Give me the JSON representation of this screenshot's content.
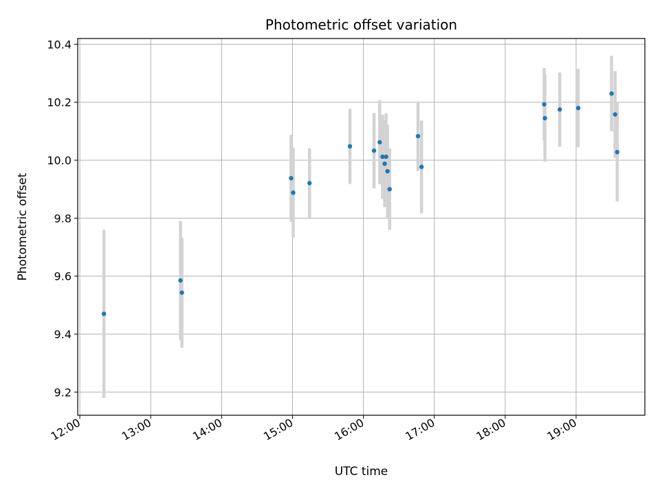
{
  "chart_data": {
    "type": "scatter",
    "title": "Photometric offset variation",
    "xlabel": "UTC time",
    "ylabel": "Photometric offset",
    "x_unit": "hours (UTC)",
    "xlim": [
      11.97,
      19.97
    ],
    "ylim": [
      9.12,
      10.42
    ],
    "x_ticks": [
      {
        "value": 12,
        "label": "12:00"
      },
      {
        "value": 13,
        "label": "13:00"
      },
      {
        "value": 14,
        "label": "14:00"
      },
      {
        "value": 15,
        "label": "15:00"
      },
      {
        "value": 16,
        "label": "16:00"
      },
      {
        "value": 17,
        "label": "17:00"
      },
      {
        "value": 18,
        "label": "18:00"
      },
      {
        "value": 19,
        "label": "19:00"
      }
    ],
    "y_ticks": [
      {
        "value": 9.2,
        "label": "9.2"
      },
      {
        "value": 9.4,
        "label": "9.4"
      },
      {
        "value": 9.6,
        "label": "9.6"
      },
      {
        "value": 9.8,
        "label": "9.8"
      },
      {
        "value": 10.0,
        "label": "10.0"
      },
      {
        "value": 10.2,
        "label": "10.2"
      },
      {
        "value": 10.4,
        "label": "10.4"
      }
    ],
    "grid": true,
    "marker_color": "#1f77b4",
    "errorbar_color": "#d3d3d3",
    "points": [
      {
        "x": 12.34,
        "y": 9.47,
        "err": 0.29
      },
      {
        "x": 13.42,
        "y": 9.585,
        "err": 0.205
      },
      {
        "x": 13.44,
        "y": 9.543,
        "err": 0.19
      },
      {
        "x": 14.98,
        "y": 9.938,
        "err": 0.15
      },
      {
        "x": 15.01,
        "y": 9.888,
        "err": 0.155
      },
      {
        "x": 15.24,
        "y": 9.921,
        "err": 0.12
      },
      {
        "x": 15.81,
        "y": 10.048,
        "err": 0.13
      },
      {
        "x": 16.15,
        "y": 10.033,
        "err": 0.13
      },
      {
        "x": 16.23,
        "y": 10.062,
        "err": 0.145
      },
      {
        "x": 16.27,
        "y": 10.012,
        "err": 0.145
      },
      {
        "x": 16.3,
        "y": 9.988,
        "err": 0.15
      },
      {
        "x": 16.32,
        "y": 10.012,
        "err": 0.15
      },
      {
        "x": 16.34,
        "y": 9.962,
        "err": 0.16
      },
      {
        "x": 16.37,
        "y": 9.9,
        "err": 0.14
      },
      {
        "x": 16.77,
        "y": 10.083,
        "err": 0.12
      },
      {
        "x": 16.82,
        "y": 9.977,
        "err": 0.16
      },
      {
        "x": 18.55,
        "y": 10.193,
        "err": 0.125
      },
      {
        "x": 18.56,
        "y": 10.145,
        "err": 0.15
      },
      {
        "x": 18.77,
        "y": 10.175,
        "err": 0.128
      },
      {
        "x": 19.03,
        "y": 10.18,
        "err": 0.135
      },
      {
        "x": 19.5,
        "y": 10.23,
        "err": 0.13
      },
      {
        "x": 19.55,
        "y": 10.158,
        "err": 0.15
      },
      {
        "x": 19.58,
        "y": 10.028,
        "err": 0.17
      }
    ]
  }
}
